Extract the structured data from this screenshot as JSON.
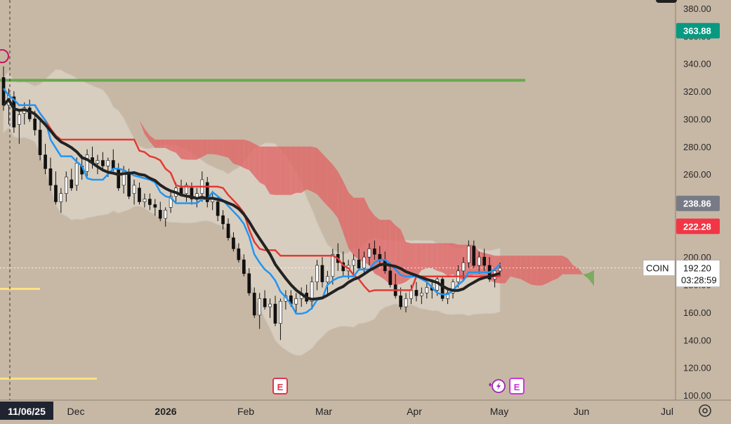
{
  "chart_data": {
    "type": "candlestick",
    "symbol": "COIN",
    "last_price": "192.20",
    "countdown": "03:28:59",
    "crosshair_date": "11/06/25",
    "y_ticks": [
      "380.00",
      "360.00",
      "340.00",
      "320.00",
      "300.00",
      "280.00",
      "260.00",
      "240.00",
      "220.00",
      "200.00",
      "180.00",
      "160.00",
      "140.00",
      "120.00",
      "100.00"
    ],
    "x_labels": [
      "Dec",
      "2026",
      "Feb",
      "Mar",
      "Apr",
      "May",
      "Jun",
      "Jul"
    ],
    "ylim": [
      100,
      380
    ],
    "price_tags": [
      {
        "value": "363.88",
        "color": "#089981"
      },
      {
        "value": "238.86",
        "color": "#787b86"
      },
      {
        "value": "222.28",
        "color": "#f23645"
      }
    ],
    "horizontal_levels": [
      {
        "price": 328,
        "color": "#6aa84f"
      },
      {
        "price": 177,
        "color": "#ffe082"
      },
      {
        "price": 112,
        "color": "#ffe082"
      }
    ],
    "earnings_markers": [
      "E",
      "E"
    ],
    "series": [
      {
        "name": "tenkan",
        "color": "#2196f3"
      },
      {
        "name": "kijun",
        "color": "#e53935"
      },
      {
        "name": "moving_average",
        "color": "#222222"
      },
      {
        "name": "bollinger_band",
        "color": "#ddd5c8"
      },
      {
        "name": "kumo_bearish",
        "color": "#e06666"
      },
      {
        "name": "kumo_bullish",
        "color": "#6aa84f"
      }
    ],
    "candles": [
      {
        "o": 330,
        "h": 338,
        "l": 306,
        "c": 310
      },
      {
        "o": 310,
        "h": 322,
        "l": 296,
        "c": 318
      },
      {
        "o": 316,
        "h": 320,
        "l": 290,
        "c": 294
      },
      {
        "o": 296,
        "h": 306,
        "l": 282,
        "c": 303
      },
      {
        "o": 304,
        "h": 312,
        "l": 296,
        "c": 308
      },
      {
        "o": 308,
        "h": 314,
        "l": 298,
        "c": 300
      },
      {
        "o": 300,
        "h": 306,
        "l": 288,
        "c": 292
      },
      {
        "o": 292,
        "h": 300,
        "l": 270,
        "c": 274
      },
      {
        "o": 274,
        "h": 282,
        "l": 260,
        "c": 264
      },
      {
        "o": 264,
        "h": 272,
        "l": 248,
        "c": 252
      },
      {
        "o": 252,
        "h": 262,
        "l": 238,
        "c": 240
      },
      {
        "o": 240,
        "h": 250,
        "l": 232,
        "c": 246
      },
      {
        "o": 246,
        "h": 262,
        "l": 240,
        "c": 258
      },
      {
        "o": 256,
        "h": 264,
        "l": 248,
        "c": 250
      },
      {
        "o": 252,
        "h": 272,
        "l": 248,
        "c": 268
      },
      {
        "o": 266,
        "h": 274,
        "l": 256,
        "c": 260
      },
      {
        "o": 262,
        "h": 278,
        "l": 258,
        "c": 274
      },
      {
        "o": 272,
        "h": 280,
        "l": 264,
        "c": 268
      },
      {
        "o": 268,
        "h": 274,
        "l": 260,
        "c": 270
      },
      {
        "o": 270,
        "h": 276,
        "l": 262,
        "c": 266
      },
      {
        "o": 266,
        "h": 272,
        "l": 258,
        "c": 270
      },
      {
        "o": 270,
        "h": 278,
        "l": 262,
        "c": 264
      },
      {
        "o": 264,
        "h": 268,
        "l": 248,
        "c": 250
      },
      {
        "o": 252,
        "h": 266,
        "l": 246,
        "c": 262
      },
      {
        "o": 260,
        "h": 264,
        "l": 242,
        "c": 244
      },
      {
        "o": 246,
        "h": 256,
        "l": 238,
        "c": 252
      },
      {
        "o": 250,
        "h": 254,
        "l": 238,
        "c": 240
      },
      {
        "o": 240,
        "h": 246,
        "l": 236,
        "c": 242
      },
      {
        "o": 242,
        "h": 246,
        "l": 234,
        "c": 238
      },
      {
        "o": 238,
        "h": 242,
        "l": 230,
        "c": 236
      },
      {
        "o": 234,
        "h": 240,
        "l": 226,
        "c": 228
      },
      {
        "o": 228,
        "h": 236,
        "l": 222,
        "c": 234
      },
      {
        "o": 236,
        "h": 248,
        "l": 232,
        "c": 244
      },
      {
        "o": 244,
        "h": 254,
        "l": 240,
        "c": 250
      },
      {
        "o": 250,
        "h": 256,
        "l": 244,
        "c": 246
      },
      {
        "o": 246,
        "h": 254,
        "l": 240,
        "c": 252
      },
      {
        "o": 250,
        "h": 254,
        "l": 238,
        "c": 242
      },
      {
        "o": 242,
        "h": 250,
        "l": 236,
        "c": 246
      },
      {
        "o": 246,
        "h": 262,
        "l": 240,
        "c": 256
      },
      {
        "o": 254,
        "h": 258,
        "l": 236,
        "c": 240
      },
      {
        "o": 240,
        "h": 248,
        "l": 234,
        "c": 242
      },
      {
        "o": 240,
        "h": 244,
        "l": 226,
        "c": 230
      },
      {
        "o": 230,
        "h": 234,
        "l": 220,
        "c": 224
      },
      {
        "o": 224,
        "h": 228,
        "l": 212,
        "c": 214
      },
      {
        "o": 214,
        "h": 218,
        "l": 204,
        "c": 206
      },
      {
        "o": 206,
        "h": 210,
        "l": 196,
        "c": 198
      },
      {
        "o": 198,
        "h": 202,
        "l": 186,
        "c": 188
      },
      {
        "o": 188,
        "h": 192,
        "l": 172,
        "c": 174
      },
      {
        "o": 174,
        "h": 178,
        "l": 156,
        "c": 158
      },
      {
        "o": 158,
        "h": 174,
        "l": 148,
        "c": 170
      },
      {
        "o": 170,
        "h": 176,
        "l": 162,
        "c": 164
      },
      {
        "o": 164,
        "h": 170,
        "l": 156,
        "c": 166
      },
      {
        "o": 166,
        "h": 172,
        "l": 150,
        "c": 152
      },
      {
        "o": 152,
        "h": 170,
        "l": 140,
        "c": 168
      },
      {
        "o": 168,
        "h": 176,
        "l": 162,
        "c": 172
      },
      {
        "o": 172,
        "h": 176,
        "l": 164,
        "c": 166
      },
      {
        "o": 166,
        "h": 174,
        "l": 160,
        "c": 170
      },
      {
        "o": 170,
        "h": 178,
        "l": 164,
        "c": 174
      },
      {
        "o": 174,
        "h": 180,
        "l": 166,
        "c": 168
      },
      {
        "o": 168,
        "h": 186,
        "l": 162,
        "c": 182
      },
      {
        "o": 182,
        "h": 198,
        "l": 176,
        "c": 194
      },
      {
        "o": 194,
        "h": 200,
        "l": 178,
        "c": 182
      },
      {
        "o": 182,
        "h": 190,
        "l": 172,
        "c": 186
      },
      {
        "o": 186,
        "h": 206,
        "l": 180,
        "c": 202
      },
      {
        "o": 202,
        "h": 210,
        "l": 190,
        "c": 196
      },
      {
        "o": 196,
        "h": 204,
        "l": 186,
        "c": 190
      },
      {
        "o": 190,
        "h": 198,
        "l": 184,
        "c": 194
      },
      {
        "o": 194,
        "h": 202,
        "l": 188,
        "c": 198
      },
      {
        "o": 198,
        "h": 206,
        "l": 190,
        "c": 192
      },
      {
        "o": 192,
        "h": 204,
        "l": 188,
        "c": 200
      },
      {
        "o": 200,
        "h": 210,
        "l": 194,
        "c": 206
      },
      {
        "o": 206,
        "h": 212,
        "l": 198,
        "c": 202
      },
      {
        "o": 202,
        "h": 208,
        "l": 194,
        "c": 198
      },
      {
        "o": 198,
        "h": 204,
        "l": 188,
        "c": 190
      },
      {
        "o": 190,
        "h": 196,
        "l": 178,
        "c": 180
      },
      {
        "o": 180,
        "h": 188,
        "l": 170,
        "c": 172
      },
      {
        "o": 172,
        "h": 178,
        "l": 162,
        "c": 164
      },
      {
        "o": 164,
        "h": 174,
        "l": 160,
        "c": 170
      },
      {
        "o": 170,
        "h": 180,
        "l": 166,
        "c": 176
      },
      {
        "o": 176,
        "h": 182,
        "l": 168,
        "c": 172
      },
      {
        "o": 172,
        "h": 178,
        "l": 166,
        "c": 174
      },
      {
        "o": 174,
        "h": 182,
        "l": 170,
        "c": 178
      },
      {
        "o": 178,
        "h": 184,
        "l": 170,
        "c": 176
      },
      {
        "o": 176,
        "h": 186,
        "l": 172,
        "c": 184
      },
      {
        "o": 184,
        "h": 186,
        "l": 168,
        "c": 170
      },
      {
        "o": 170,
        "h": 176,
        "l": 166,
        "c": 174
      },
      {
        "o": 174,
        "h": 184,
        "l": 170,
        "c": 182
      },
      {
        "o": 182,
        "h": 194,
        "l": 178,
        "c": 190
      },
      {
        "o": 190,
        "h": 200,
        "l": 184,
        "c": 196
      },
      {
        "o": 196,
        "h": 212,
        "l": 192,
        "c": 208
      },
      {
        "o": 208,
        "h": 212,
        "l": 192,
        "c": 194
      },
      {
        "o": 194,
        "h": 204,
        "l": 188,
        "c": 200
      },
      {
        "o": 200,
        "h": 206,
        "l": 190,
        "c": 194
      },
      {
        "o": 194,
        "h": 200,
        "l": 182,
        "c": 184
      },
      {
        "o": 184,
        "h": 192,
        "l": 178,
        "c": 190
      },
      {
        "o": 190,
        "h": 196,
        "l": 186,
        "c": 192
      }
    ]
  }
}
